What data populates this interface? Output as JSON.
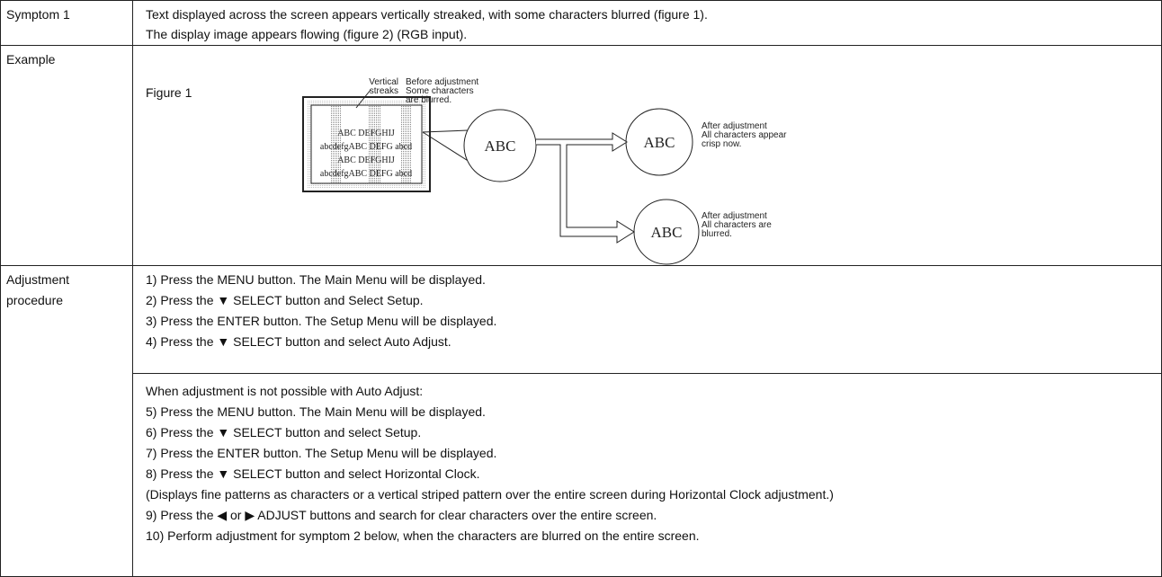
{
  "symptom": {
    "label": "Symptom 1",
    "lines": [
      "Text displayed across the screen appears vertically streaked, with some characters blurred (figure 1).",
      "The display image appears flowing (figure 2) (RGB input)."
    ]
  },
  "example": {
    "label": "Example",
    "figure": {
      "caption": "Figure 1",
      "streaks_note": [
        "Vertical",
        "streaks"
      ],
      "before_note": [
        "Before adjustment",
        "Some characters",
        "are blurred."
      ],
      "screen_lines": [
        "ABC DEFGHIJ",
        "abcdefgABC DEFG abcd",
        "ABC DEFGHIJ",
        "abcdefgABC DEFG abcd"
      ],
      "circle_labels": [
        "ABC",
        "ABC",
        "ABC"
      ],
      "after_crisp_note": [
        "After adjustment",
        "All characters appear",
        "crisp now."
      ],
      "after_blurred_note": [
        "After adjustment",
        "All characters are",
        "blurred."
      ]
    }
  },
  "procedure": {
    "label": [
      "Adjustment",
      "procedure"
    ],
    "steps": [
      "1) Press the MENU button. The Main Menu will be displayed.",
      "2) Press the ▼ SELECT button and Select Setup.",
      "3) Press the ENTER button. The Setup Menu will be displayed.",
      "4) Press the ▼ SELECT button and select Auto Adjust."
    ],
    "fallback_steps": [
      "When adjustment is not possible with Auto Adjust:",
      "5) Press the MENU button. The Main Menu will be displayed.",
      "6) Press the ▼ SELECT button and select Setup.",
      "7) Press the ENTER button. The Setup Menu will be displayed.",
      "8) Press the ▼ SELECT button and select Horizontal Clock.",
      "(Displays fine patterns as characters or a vertical striped pattern over the entire screen during Horizontal Clock adjustment.)",
      "9) Press the ◀ or ▶ ADJUST buttons and search for clear characters over the entire screen.",
      "10) Perform adjustment for symptom 2 below, when the characters are blurred on the entire screen."
    ]
  }
}
